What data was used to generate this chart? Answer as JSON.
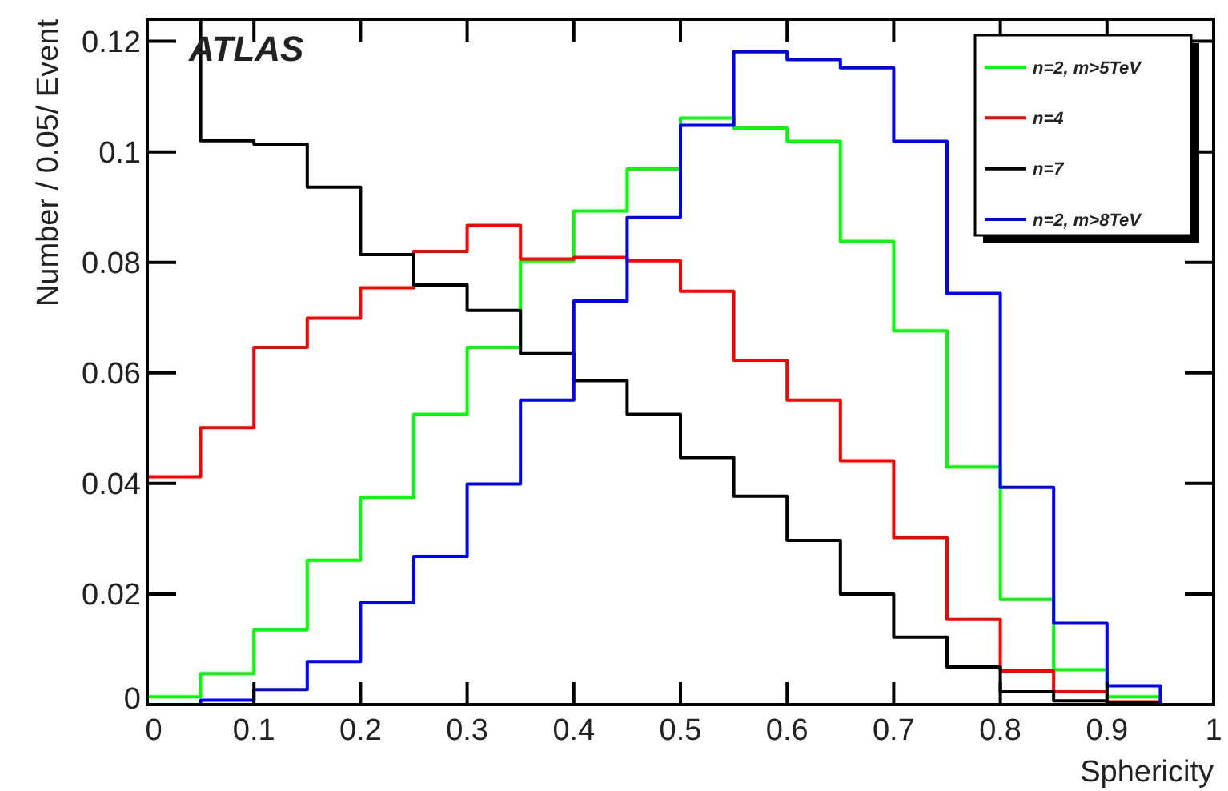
{
  "chart_data": {
    "type": "histogram",
    "xlabel": "Sphericity",
    "ylabel": "Number / 0.05/ Event",
    "annotations": [
      "ATLAS"
    ],
    "bins": [
      0,
      0.05,
      0.1,
      0.15,
      0.2,
      0.25,
      0.3,
      0.35,
      0.4,
      0.45,
      0.5,
      0.55,
      0.6,
      0.65,
      0.7,
      0.75,
      0.8,
      0.85,
      0.9,
      0.95,
      1
    ],
    "series": [
      {
        "name": "n=2, m>5TeV",
        "color": "#00ff00",
        "values": [
          0.0014,
          0.0056,
          0.0135,
          0.0261,
          0.0375,
          0.0525,
          0.0646,
          0.0803,
          0.0893,
          0.0969,
          0.1061,
          0.1043,
          0.1019,
          0.0838,
          0.0676,
          0.043,
          0.019,
          0.0063,
          0.0014,
          0
        ]
      },
      {
        "name": "n=4",
        "color": "#ff0000",
        "values": [
          0.0412,
          0.0501,
          0.0646,
          0.0699,
          0.0754,
          0.082,
          0.0867,
          0.0806,
          0.0809,
          0.0803,
          0.0748,
          0.0623,
          0.0551,
          0.0441,
          0.0302,
          0.0154,
          0.0061,
          0.0023,
          0.0005,
          0
        ]
      },
      {
        "name": "n=7",
        "color": "#000000",
        "values": [
          0.124,
          0.102,
          0.1014,
          0.0936,
          0.0814,
          0.0759,
          0.0713,
          0.0635,
          0.0586,
          0.0525,
          0.0447,
          0.0377,
          0.0297,
          0.02,
          0.0122,
          0.0068,
          0.0023,
          0.0007,
          0.0003,
          0
        ]
      },
      {
        "name": "n=2, m>8TeV",
        "color": "#0000ff",
        "values": [
          0,
          0.0008,
          0.0027,
          0.0078,
          0.0184,
          0.0268,
          0.0399,
          0.0551,
          0.073,
          0.0881,
          0.1048,
          0.1181,
          0.1167,
          0.1152,
          0.1019,
          0.0744,
          0.0393,
          0.0147,
          0.0034,
          0
        ]
      }
    ],
    "xlim": [
      0,
      1
    ],
    "xticks": [
      0,
      0.1,
      0.2,
      0.3,
      0.4,
      0.5,
      0.6,
      0.7,
      0.8,
      0.9,
      1
    ],
    "ylim": [
      0,
      0.124
    ],
    "yticks": [
      0,
      0.02,
      0.04,
      0.06,
      0.08,
      0.1,
      0.12
    ],
    "legend": "top right"
  }
}
